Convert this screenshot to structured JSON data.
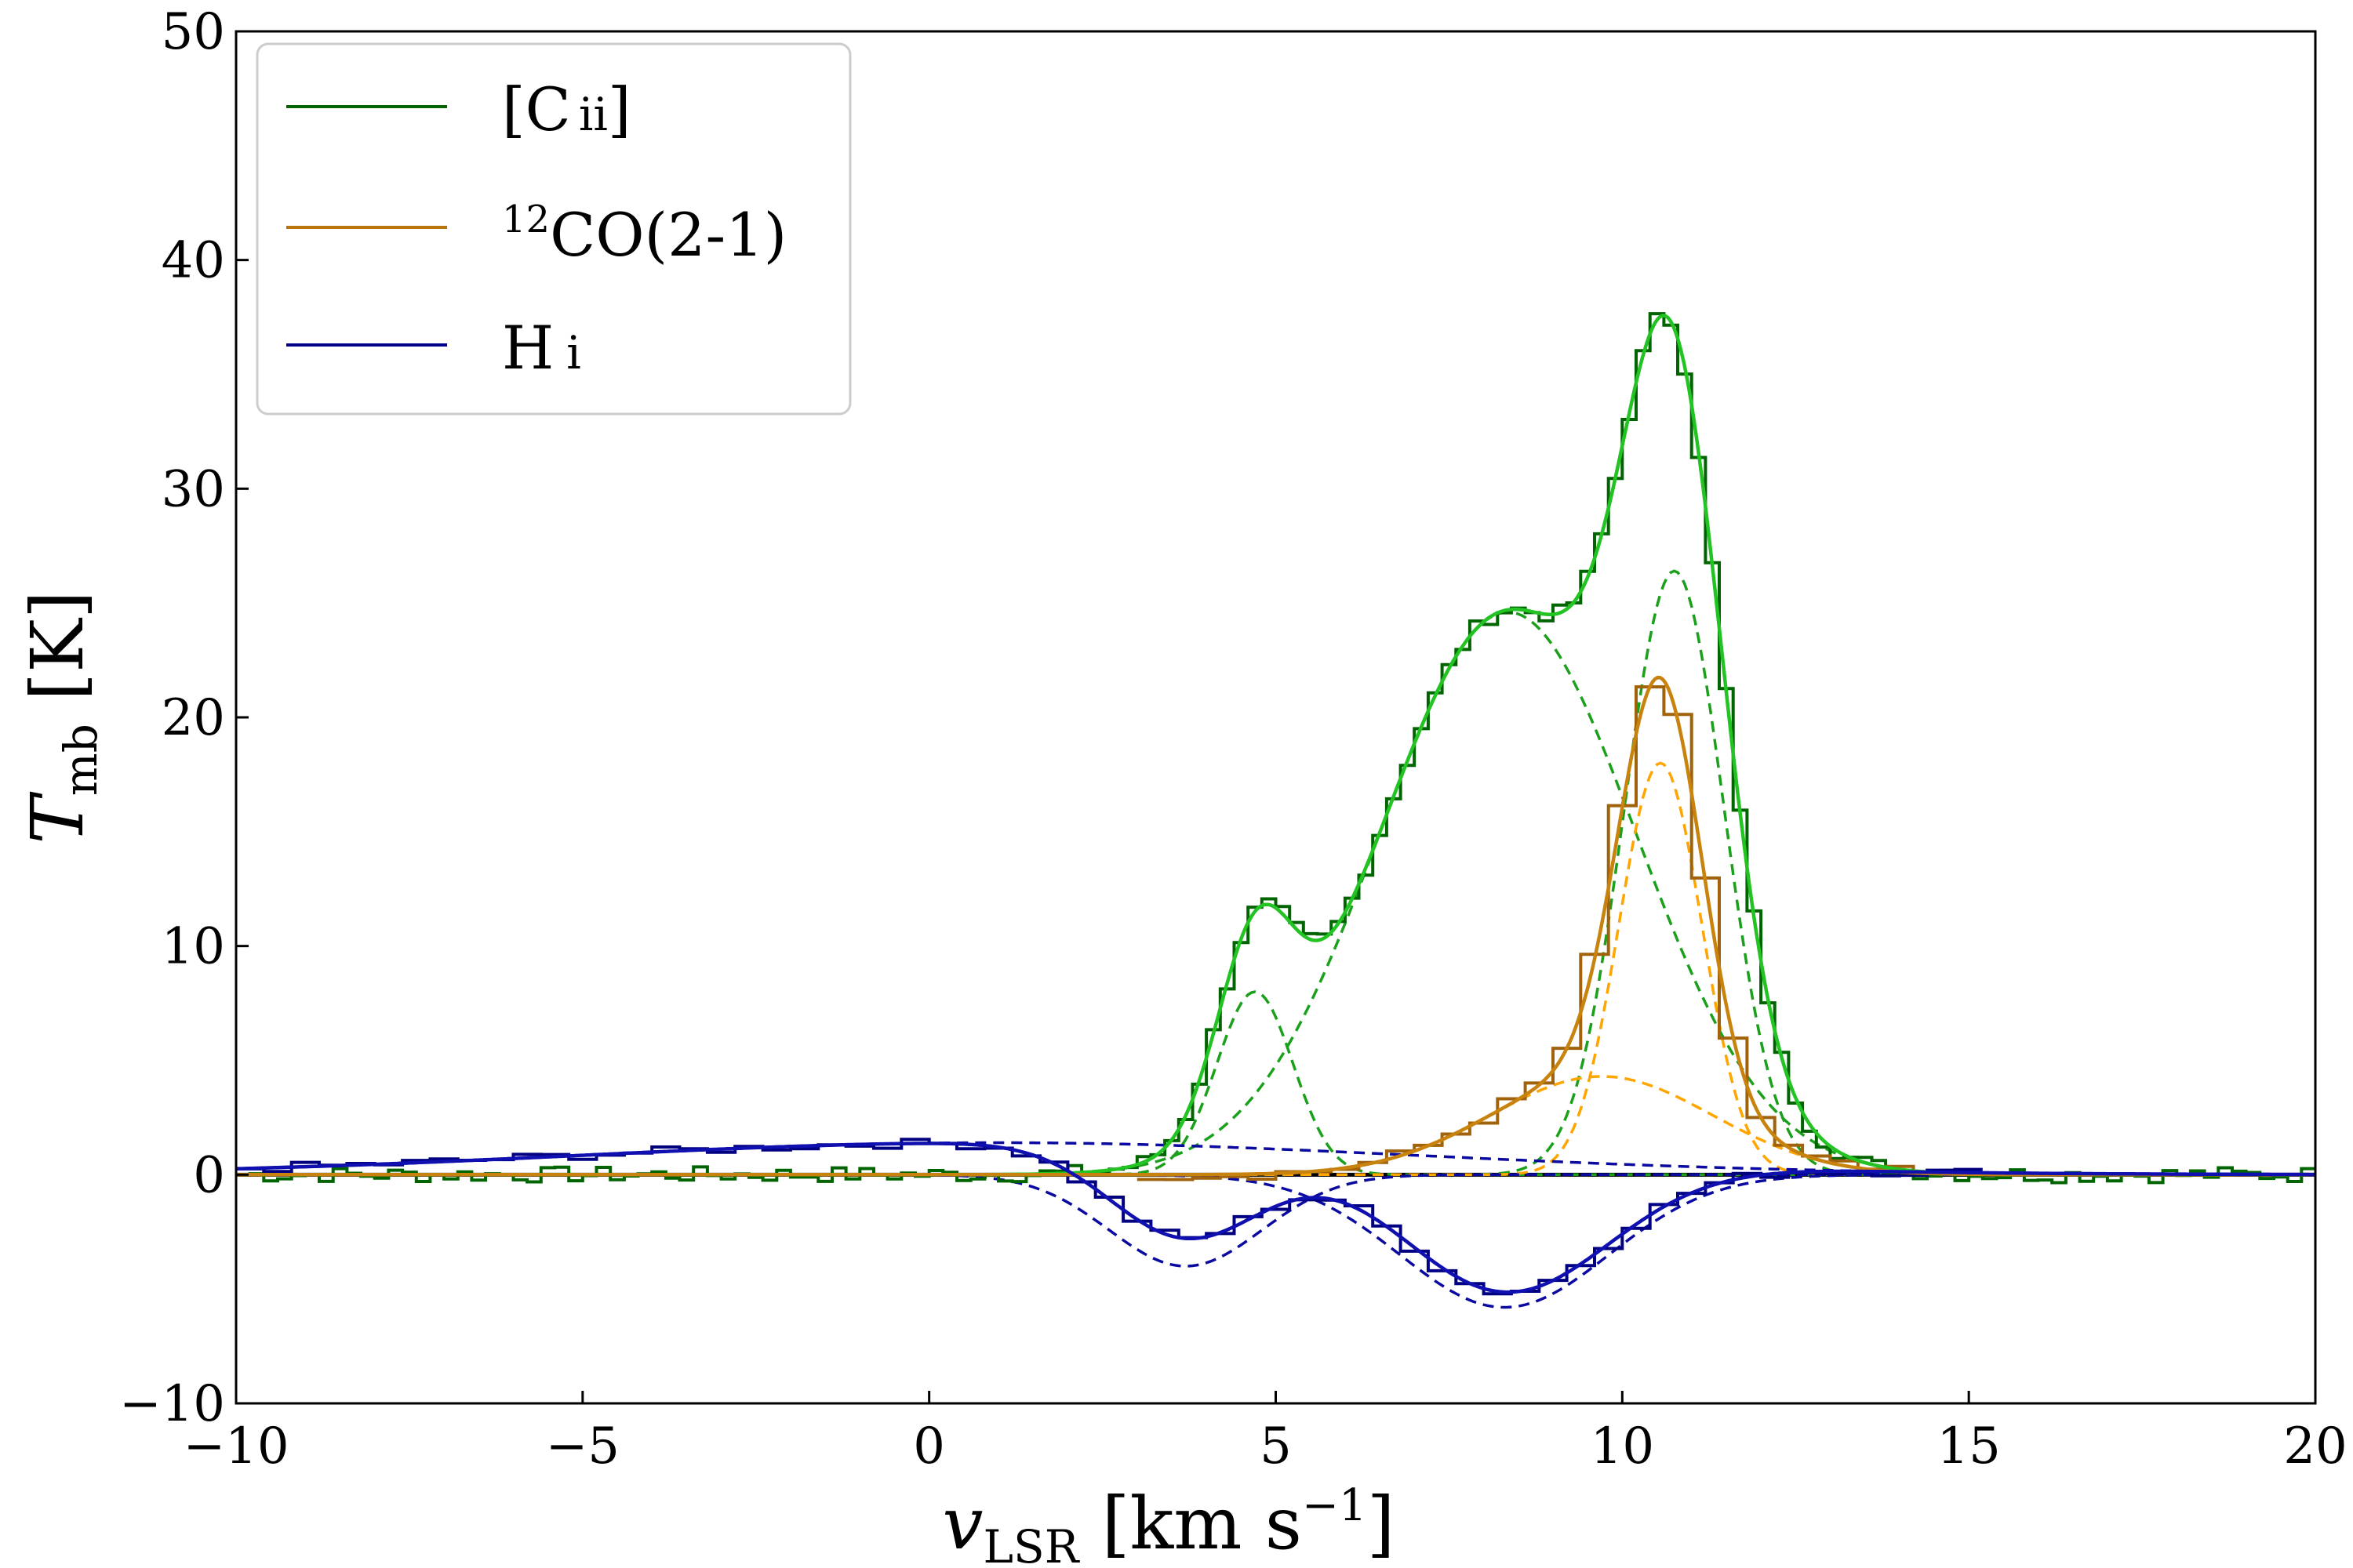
{
  "chart_data": {
    "type": "line",
    "title": "",
    "xlabel": "v_LSR [km s^-1]",
    "xlabel_parts": {
      "main": "v",
      "sub": "LSR",
      "unit_open": " [km s",
      "sup": "−1",
      "unit_close": "]"
    },
    "ylabel": "T_mb [K]",
    "ylabel_parts": {
      "main": "T",
      "sub": "mb",
      "unit": " [K]"
    },
    "xlim": [
      -10,
      20
    ],
    "ylim": [
      -10,
      50
    ],
    "xticks": [
      -10,
      -5,
      0,
      5,
      10,
      15,
      20
    ],
    "xtick_labels": [
      "−10",
      "−5",
      "0",
      "5",
      "10",
      "15",
      "20"
    ],
    "yticks": [
      -10,
      0,
      10,
      20,
      30,
      40,
      50
    ],
    "ytick_labels": [
      "−10",
      "0",
      "10",
      "20",
      "30",
      "40",
      "50"
    ],
    "grid": false,
    "legend_placement": "top-left",
    "legend": [
      {
        "key": "cii",
        "label": "[C II]",
        "label_main": "[C",
        "label_ion": "ii",
        "label_close": "]",
        "color": "#006400"
      },
      {
        "key": "co",
        "label": "12CO(2-1)",
        "label_sup": "12",
        "label_main": "CO(2-1)",
        "color": "#b8760a"
      },
      {
        "key": "hi",
        "label": "H I",
        "label_main": "H",
        "label_ion": "i",
        "color": "#00008b"
      }
    ],
    "colors": {
      "cii_data": "#006400",
      "cii_fit": "#22c322",
      "cii_comp": "#1aa01a",
      "co_data": "#a0620a",
      "co_fit": "#c8820e",
      "co_comp": "#ffa500",
      "hi_data": "#000080",
      "hi_fit": "#1010b0",
      "hi_comp": "#0a0aa0",
      "zero_line": "#000000"
    },
    "zero_line": 0,
    "series": [
      {
        "name": "[C II]",
        "key": "cii",
        "kind": "histogram",
        "step": 0.2,
        "x_start": -10,
        "x_end": 20,
        "baseline_offset": 0.0,
        "components": [
          {
            "amp": 8.0,
            "center": 4.7,
            "sigma": 0.55
          },
          {
            "amp": 24.6,
            "center": 8.35,
            "sigma": 1.85
          },
          {
            "amp": 26.4,
            "center": 10.75,
            "sigma": 0.72
          }
        ],
        "noise": 0.35
      },
      {
        "name": "12CO(2-1)",
        "key": "co",
        "kind": "histogram",
        "step": 0.4,
        "x_start": 3,
        "x_end": 15,
        "components": [
          {
            "amp": 18.0,
            "center": 10.55,
            "sigma": 0.6
          },
          {
            "amp": 4.3,
            "center": 9.7,
            "sigma": 1.6
          }
        ],
        "noise": 0.25
      },
      {
        "name": "H I",
        "key": "hi",
        "kind": "histogram",
        "step": 0.4,
        "x_start": -10,
        "x_end": 15,
        "components": [
          {
            "amp": 1.4,
            "center": 1.0,
            "sigma": 6.0
          },
          {
            "amp": -4.0,
            "center": 3.7,
            "sigma": 1.1
          },
          {
            "amp": -5.8,
            "center": 8.3,
            "sigma": 1.5
          }
        ],
        "noise": 0.2
      }
    ],
    "fits": [
      {
        "key": "cii_fit",
        "color_key": "cii_fit",
        "components": [
          {
            "amp": 8.0,
            "center": 4.7,
            "sigma": 0.55
          },
          {
            "amp": 24.6,
            "center": 8.35,
            "sigma": 1.85
          },
          {
            "amp": 26.4,
            "center": 10.75,
            "sigma": 0.72
          }
        ]
      },
      {
        "key": "co_fit",
        "color_key": "co_fit",
        "components": [
          {
            "amp": 18.0,
            "center": 10.55,
            "sigma": 0.6
          },
          {
            "amp": 4.3,
            "center": 9.7,
            "sigma": 1.6
          }
        ]
      },
      {
        "key": "hi_fit",
        "color_key": "hi_fit",
        "components": [
          {
            "amp": 1.4,
            "center": 1.0,
            "sigma": 6.0
          },
          {
            "amp": -4.0,
            "center": 3.7,
            "sigma": 1.1
          },
          {
            "amp": -5.8,
            "center": 8.3,
            "sigma": 1.5
          }
        ]
      }
    ]
  }
}
